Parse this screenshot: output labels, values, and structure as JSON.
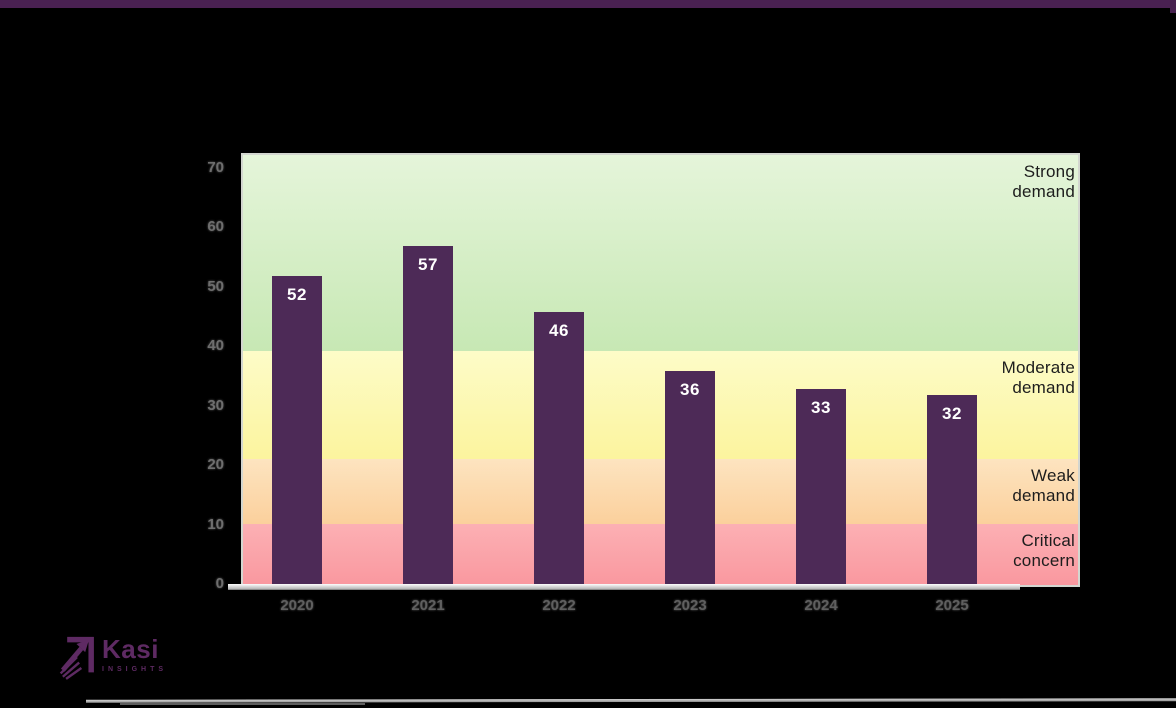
{
  "accent": {
    "top_bar_color": "#4a2152"
  },
  "chart_data": {
    "type": "bar",
    "title": "",
    "categories": [
      "2020",
      "2021",
      "2022",
      "2023",
      "2024",
      "2025"
    ],
    "values": [
      52,
      57,
      46,
      36,
      33,
      32
    ],
    "xlabel": "",
    "ylabel": "",
    "ylim": [
      0,
      70
    ],
    "yticks": [
      0,
      10,
      20,
      30,
      40,
      50,
      60,
      70
    ],
    "grid": false,
    "legend": false,
    "bar_color": "#4d2a57",
    "value_label_color": "#ffffff",
    "zones": [
      {
        "label": "Critical concern",
        "from": 0,
        "to": 10.2,
        "color_top": "#fcb0b4",
        "color_bottom": "#f9989f"
      },
      {
        "label": "Weak demand",
        "from": 10.2,
        "to": 21.2,
        "color_top": "#fde4c0",
        "color_bottom": "#fbd09c"
      },
      {
        "label": "Moderate demand",
        "from": 21.2,
        "to": 39.3,
        "color_top": "#fdfcc8",
        "color_bottom": "#fcf49e"
      },
      {
        "label": "Strong demand",
        "from": 39.3,
        "to": 72.35,
        "color_top": "#e5f5da",
        "color_bottom": "#c7e8b4"
      }
    ]
  },
  "logo": {
    "name": "Kasi",
    "subtext": "INSIGHTS"
  }
}
